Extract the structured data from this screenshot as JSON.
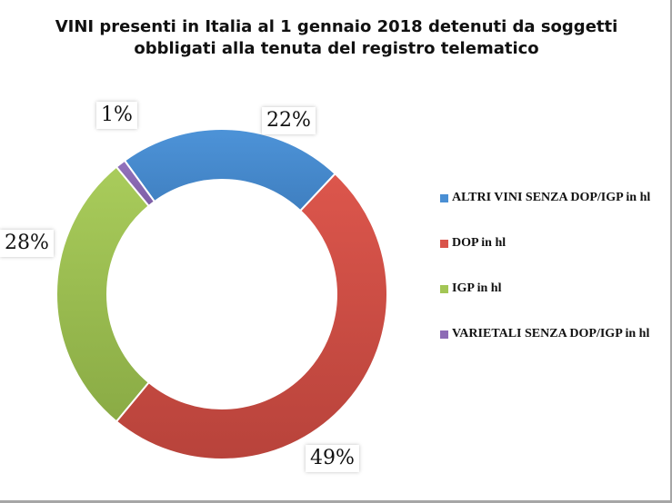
{
  "chart_data": {
    "type": "pie",
    "variant": "doughnut",
    "title": "VINI presenti in Italia  al 1 gennaio 2018 detenuti da soggetti obbligati alla tenuta del registro telematico",
    "title_lines": [
      "VINI presenti in Italia  al 1 gennaio 2018 detenuti da soggetti",
      "obbligati alla tenuta del registro telematico"
    ],
    "categories": [
      "ALTRI VINI SENZA DOP/IGP in hl",
      "DOP in hl",
      "IGP in hl",
      "VARIETALI SENZA DOP/IGP in hl"
    ],
    "values": [
      22,
      49,
      28,
      1
    ],
    "value_labels": [
      "22%",
      "49%",
      "28%",
      "1%"
    ],
    "colors": [
      "#4a8fd4",
      "#d9534a",
      "#a3c655",
      "#8d6bb5"
    ],
    "legend_position": "right",
    "unit": "%"
  },
  "legend": {
    "items": [
      {
        "label": "ALTRI VINI SENZA DOP/IGP in hl",
        "color": "#4a8fd4"
      },
      {
        "label": "DOP in hl",
        "color": "#d9534a"
      },
      {
        "label": "IGP in hl",
        "color": "#a3c655"
      },
      {
        "label": "VARIETALI SENZA DOP/IGP in hl",
        "color": "#8d6bb5"
      }
    ]
  },
  "labels": {
    "altri": "22%",
    "dop": "49%",
    "igp": "28%",
    "varietali": "1%"
  }
}
